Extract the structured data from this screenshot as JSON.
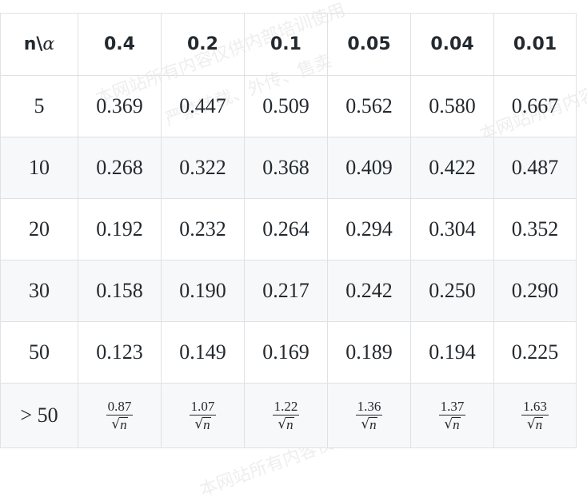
{
  "table": {
    "header": {
      "corner_prefix": "n\\",
      "corner_symbol": "α",
      "alphas": [
        "0.4",
        "0.2",
        "0.1",
        "0.05",
        "0.04",
        "0.01"
      ]
    },
    "rows": [
      {
        "n": "5",
        "values": [
          "0.369",
          "0.447",
          "0.509",
          "0.562",
          "0.580",
          "0.667"
        ]
      },
      {
        "n": "10",
        "values": [
          "0.268",
          "0.322",
          "0.368",
          "0.409",
          "0.422",
          "0.487"
        ]
      },
      {
        "n": "20",
        "values": [
          "0.192",
          "0.232",
          "0.264",
          "0.294",
          "0.304",
          "0.352"
        ]
      },
      {
        "n": "30",
        "values": [
          "0.158",
          "0.190",
          "0.217",
          "0.242",
          "0.250",
          "0.290"
        ]
      },
      {
        "n": "50",
        "values": [
          "0.123",
          "0.149",
          "0.169",
          "0.189",
          "0.194",
          "0.225"
        ]
      }
    ],
    "last_row": {
      "n": "> 50",
      "numerators": [
        "0.87",
        "1.07",
        "1.22",
        "1.36",
        "1.37",
        "1.63"
      ],
      "radicand": "n"
    }
  },
  "watermark": {
    "line1": "本网站所有内容仅供内部培训使用",
    "line2": "严禁转载、外传、售卖"
  }
}
